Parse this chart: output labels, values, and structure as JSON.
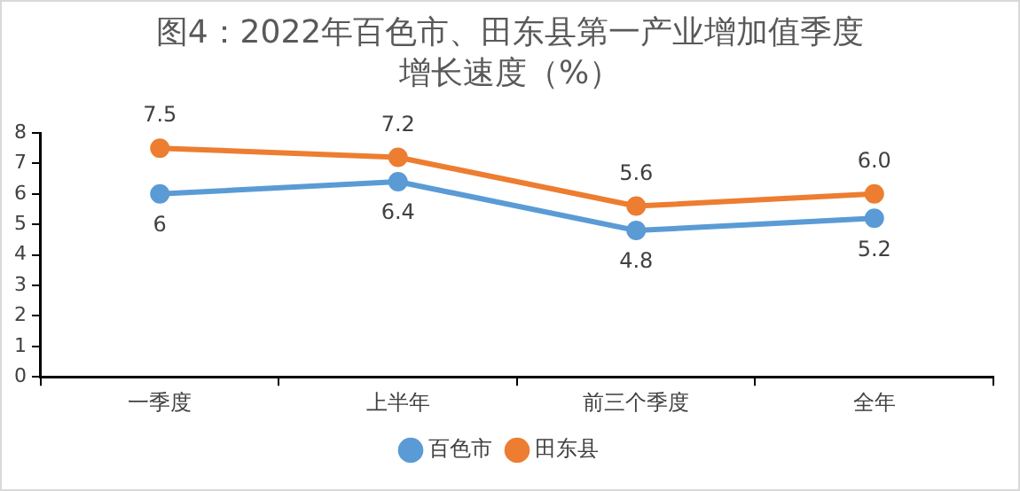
{
  "chart_data": {
    "type": "line",
    "title": "图4：2022年百色市、田东县第一产业增加值季度增长速度（%）",
    "categories": [
      "一季度",
      "上半年",
      "前三个季度",
      "全年"
    ],
    "series": [
      {
        "name": "百色市",
        "color": "#5b9bd5",
        "values": [
          6,
          6.4,
          4.8,
          5.2
        ],
        "value_labels": [
          "6",
          "6.4",
          "4.8",
          "5.2"
        ]
      },
      {
        "name": "田东县",
        "color": "#ed7d31",
        "values": [
          7.5,
          7.2,
          5.6,
          6.0
        ],
        "value_labels": [
          "7.5",
          "7.2",
          "5.6",
          "6.0"
        ]
      }
    ],
    "ylim": [
      0,
      8
    ],
    "yticks": [
      0,
      1,
      2,
      3,
      4,
      5,
      6,
      7,
      8
    ],
    "grid": false,
    "legend": "bottom",
    "marker": "circle",
    "line_style": "solid"
  }
}
